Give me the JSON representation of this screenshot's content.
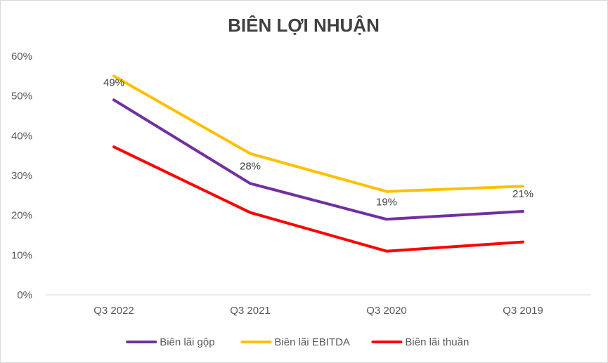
{
  "chart_data": {
    "type": "line",
    "title": "BIÊN LỢI NHUẬN",
    "xlabel": "",
    "ylabel": "",
    "categories": [
      "Q3 2022",
      "Q3 2021",
      "Q3 2020",
      "Q3 2019"
    ],
    "ylim": [
      0,
      0.6
    ],
    "yticks": [
      "0%",
      "10%",
      "20%",
      "30%",
      "40%",
      "50%",
      "60%"
    ],
    "grid": false,
    "legend_position": "bottom",
    "series": [
      {
        "name": "Biên lãi gộp",
        "color": "#7030a0",
        "values": [
          0.49,
          0.28,
          0.19,
          0.21
        ],
        "data_labels": [
          "49%",
          "28%",
          "19%",
          "21%"
        ]
      },
      {
        "name": "Biên lãi EBITDA",
        "color": "#ffc000",
        "values": [
          0.55,
          0.355,
          0.26,
          0.273
        ]
      },
      {
        "name": "Biên lãi thuần",
        "color": "#ff0000",
        "values": [
          0.372,
          0.207,
          0.11,
          0.133
        ]
      }
    ]
  }
}
